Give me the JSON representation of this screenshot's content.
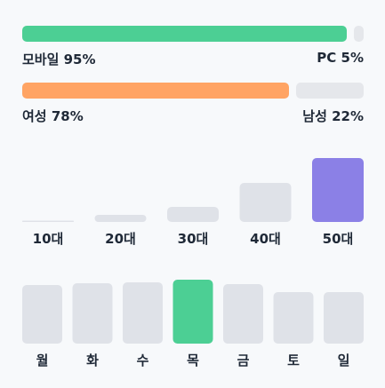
{
  "chart_data": [
    {
      "type": "bar",
      "orientation": "horizontal-stacked",
      "categories": [
        "모바일",
        "PC"
      ],
      "values": [
        95,
        5
      ],
      "unit": "%",
      "labels": [
        "모바일 95%",
        "PC 5%"
      ],
      "colors": [
        "#4CCF94",
        "#E5E7EB"
      ]
    },
    {
      "type": "bar",
      "orientation": "horizontal-stacked",
      "categories": [
        "여성",
        "남성"
      ],
      "values": [
        78,
        22
      ],
      "unit": "%",
      "labels": [
        "여성 78%",
        "남성 22%"
      ],
      "colors": [
        "#FFA463",
        "#E5E7EB"
      ]
    },
    {
      "type": "bar",
      "categories": [
        "10대",
        "20대",
        "30대",
        "40대",
        "50대"
      ],
      "values": [
        1,
        8,
        17,
        44,
        72
      ],
      "ylim": [
        0,
        72
      ],
      "highlight_index": 4,
      "colors": {
        "bar": "#DFE2E8",
        "highlight": "#8B80E6"
      }
    },
    {
      "type": "bar",
      "categories": [
        "월",
        "화",
        "수",
        "목",
        "금",
        "토",
        "일"
      ],
      "values": [
        66,
        68,
        69,
        72,
        67,
        58,
        58
      ],
      "ylim": [
        0,
        72
      ],
      "highlight_index": 3,
      "colors": {
        "bar": "#DFE2E8",
        "highlight": "#4CCF94"
      }
    }
  ]
}
